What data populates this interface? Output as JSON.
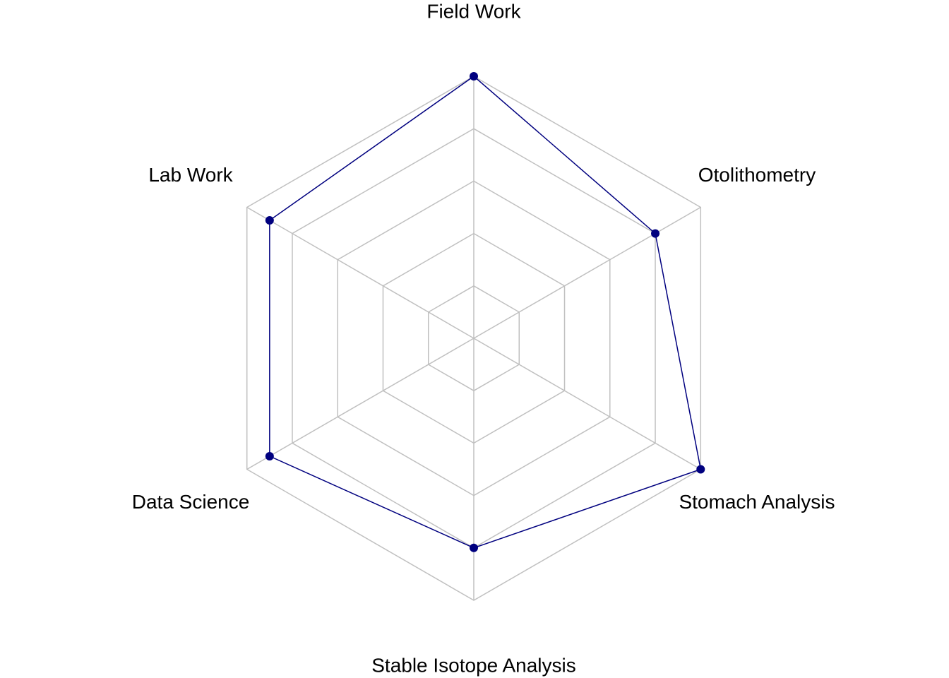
{
  "chart_data": {
    "type": "radar",
    "title": "",
    "axes": [
      "Field Work",
      "Otolithometry",
      "Stomach Analysis",
      "Stable Isotope Analysis",
      "Data Science",
      "Lab Work"
    ],
    "series": [
      {
        "values": [
          10,
          8,
          10,
          8,
          9,
          9
        ]
      }
    ],
    "range": [
      0,
      10
    ],
    "grid_levels": 5,
    "grid_on": true,
    "colors": {
      "series": "#00007f",
      "grid": "#c0c0c0"
    }
  }
}
